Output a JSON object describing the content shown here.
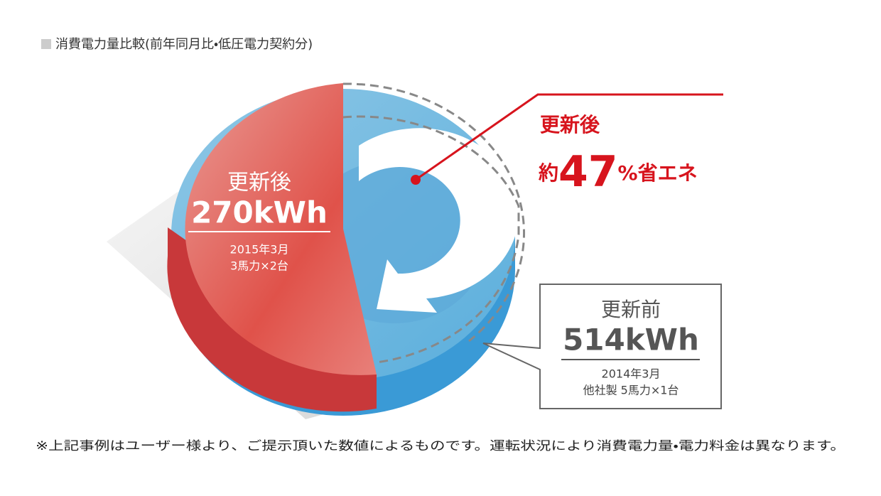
{
  "header": {
    "title": "消費電力量比較(前年同月比・低圧電力契約分)"
  },
  "after": {
    "label": "更新後",
    "value": "270kWh",
    "date": "2015年3月",
    "spec": "3馬力×2台"
  },
  "before": {
    "label": "更新前",
    "value": "514kWh",
    "date": "2014年3月",
    "spec": "他社製 5馬力×1台"
  },
  "callout": {
    "line1": "更新後",
    "prefix": "約",
    "number": "47",
    "suffix": "%省エネ"
  },
  "footnote": "※上記事例はユーザー様より、ご提示頂いた数値によるものです。運転状況により消費電力量・電力料金は異なります。"
}
